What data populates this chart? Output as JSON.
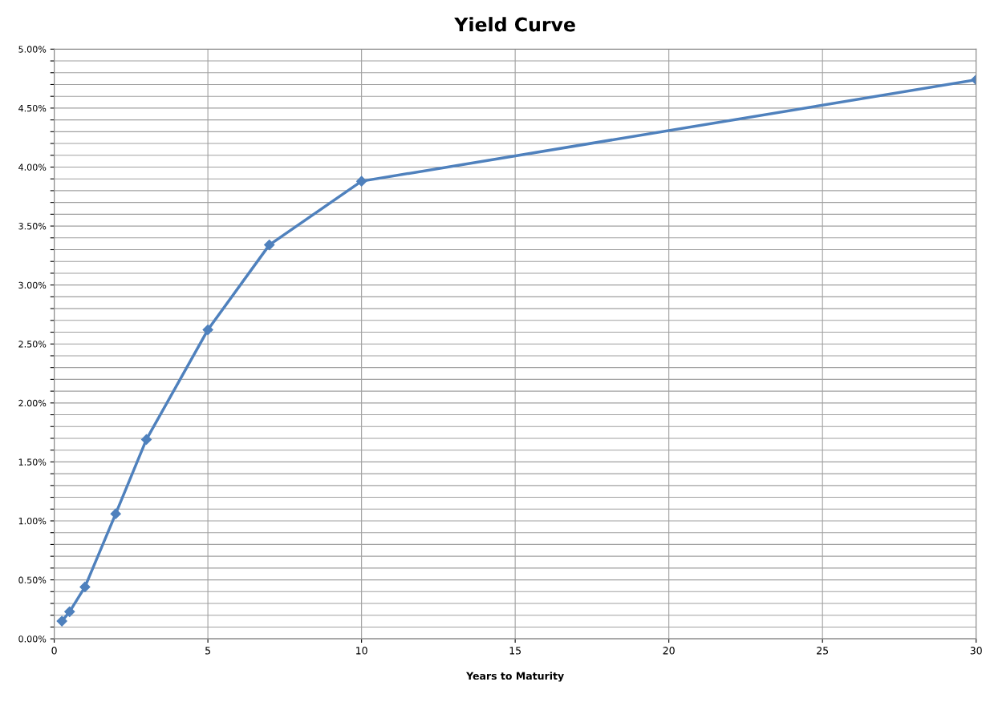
{
  "chart_data": {
    "type": "line",
    "title": "Yield Curve",
    "xlabel": "Years to Maturity",
    "x": [
      0.25,
      0.5,
      1,
      2,
      3,
      5,
      7,
      10,
      30
    ],
    "series": [
      {
        "color": "#4f81bd",
        "values": [
          0.15,
          0.23,
          0.44,
          1.06,
          1.69,
          2.62,
          3.34,
          3.88,
          4.74
        ]
      }
    ],
    "xlim": [
      0,
      30
    ],
    "xticks": [
      0,
      5,
      10,
      15,
      20,
      25,
      30
    ],
    "ylim": [
      0,
      5
    ],
    "yticks": [
      {
        "value": 0,
        "label": "0.00%"
      },
      {
        "value": 0.1,
        "label": null
      },
      {
        "value": 0.2,
        "label": null
      },
      {
        "value": 0.3,
        "label": null
      },
      {
        "value": 0.4,
        "label": null
      },
      {
        "value": 0.5,
        "label": "0.50%"
      },
      {
        "value": 0.6,
        "label": null
      },
      {
        "value": 0.7,
        "label": null
      },
      {
        "value": 0.8,
        "label": null
      },
      {
        "value": 0.9,
        "label": null
      },
      {
        "value": 1,
        "label": "1.00%"
      },
      {
        "value": 1.1,
        "label": null
      },
      {
        "value": 1.2,
        "label": null
      },
      {
        "value": 1.3,
        "label": null
      },
      {
        "value": 1.4,
        "label": null
      },
      {
        "value": 1.5,
        "label": "1.50%"
      },
      {
        "value": 1.6,
        "label": null
      },
      {
        "value": 1.7,
        "label": null
      },
      {
        "value": 1.8,
        "label": null
      },
      {
        "value": 1.9,
        "label": null
      },
      {
        "value": 2,
        "label": "2.00%"
      },
      {
        "value": 2.1,
        "label": null
      },
      {
        "value": 2.2,
        "label": null
      },
      {
        "value": 2.3,
        "label": null
      },
      {
        "value": 2.4,
        "label": null
      },
      {
        "value": 2.5,
        "label": "2.50%"
      },
      {
        "value": 2.6,
        "label": null
      },
      {
        "value": 2.7,
        "label": null
      },
      {
        "value": 2.8,
        "label": null
      },
      {
        "value": 2.9,
        "label": null
      },
      {
        "value": 3,
        "label": "3.00%"
      },
      {
        "value": 3.1,
        "label": null
      },
      {
        "value": 3.2,
        "label": null
      },
      {
        "value": 3.3,
        "label": null
      },
      {
        "value": 3.4,
        "label": null
      },
      {
        "value": 3.5,
        "label": "3.50%"
      },
      {
        "value": 3.6,
        "label": null
      },
      {
        "value": 3.7,
        "label": null
      },
      {
        "value": 3.8,
        "label": null
      },
      {
        "value": 3.9,
        "label": null
      },
      {
        "value": 4,
        "label": "4.00%"
      },
      {
        "value": 4.1,
        "label": null
      },
      {
        "value": 4.2,
        "label": null
      },
      {
        "value": 4.3,
        "label": null
      },
      {
        "value": 4.4,
        "label": null
      },
      {
        "value": 4.5,
        "label": "4.50%"
      },
      {
        "value": 4.6,
        "label": null
      },
      {
        "value": 4.7,
        "label": null
      },
      {
        "value": 4.8,
        "label": null
      },
      {
        "value": 4.9,
        "label": null
      },
      {
        "value": 5,
        "label": "5.00%"
      }
    ],
    "grid": true,
    "marker": "diamond",
    "line_style": "solid",
    "legend": false
  }
}
